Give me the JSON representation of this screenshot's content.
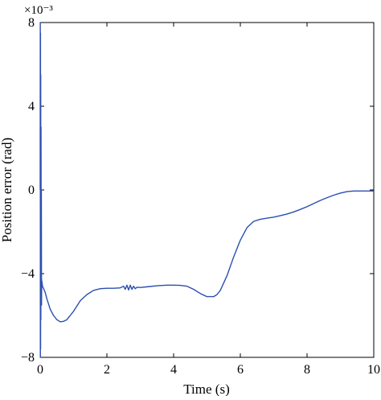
{
  "chart_data": {
    "type": "line",
    "title": "",
    "xlabel": "Time (s)",
    "ylabel": "Position error (rad)",
    "y_scale_label": "×10⁻³",
    "xlim": [
      0,
      10
    ],
    "ylim": [
      -8,
      8
    ],
    "xticks": [
      0,
      2,
      4,
      6,
      8,
      10
    ],
    "yticks": [
      -8,
      -4,
      0,
      4,
      8
    ],
    "xtick_labels": [
      "0",
      "2",
      "4",
      "6",
      "8",
      "10"
    ],
    "ytick_labels": [
      "−8",
      "−4",
      "0",
      "4",
      "8"
    ],
    "grid": false,
    "legend": "none",
    "series": [
      {
        "color": "#2b4fb0",
        "unit_scale": "1e-3",
        "x": [
          0,
          0.003,
          0.006,
          0.009,
          0.012,
          0.016,
          0.02,
          0.025,
          0.03,
          0.035,
          0.04,
          0.045,
          0.05,
          0.055,
          0.06,
          0.07,
          0.08,
          0.1,
          0.15,
          0.2,
          0.3,
          0.4,
          0.5,
          0.6,
          0.7,
          0.8,
          0.85,
          0.9,
          1.0,
          1.2,
          1.4,
          1.6,
          1.8,
          2.0,
          2.2,
          2.4,
          2.5,
          2.55,
          2.6,
          2.65,
          2.7,
          2.75,
          2.8,
          2.85,
          2.9,
          3.0,
          3.2,
          3.5,
          3.8,
          4.0,
          4.2,
          4.4,
          4.6,
          4.8,
          5.0,
          5.2,
          5.3,
          5.4,
          5.6,
          5.8,
          6.0,
          6.2,
          6.4,
          6.6,
          6.8,
          7.0,
          7.2,
          7.4,
          7.6,
          7.8,
          8.0,
          8.2,
          8.4,
          8.6,
          8.8,
          9.0,
          9.2,
          9.4,
          9.6,
          9.8,
          10.0
        ],
        "y": [
          0,
          8.0,
          -8.0,
          7.5,
          -7.6,
          5.5,
          -6.2,
          3.0,
          -4.0,
          0.0,
          -5.5,
          -4.3,
          -4.6,
          -4.4,
          -4.5,
          -4.6,
          -4.65,
          -4.7,
          -4.9,
          -5.2,
          -5.7,
          -6.0,
          -6.2,
          -6.3,
          -6.28,
          -6.2,
          -6.1,
          -6.0,
          -5.8,
          -5.3,
          -5.0,
          -4.8,
          -4.72,
          -4.7,
          -4.7,
          -4.68,
          -4.6,
          -4.75,
          -4.55,
          -4.78,
          -4.55,
          -4.75,
          -4.6,
          -4.72,
          -4.65,
          -4.66,
          -4.63,
          -4.58,
          -4.55,
          -4.55,
          -4.56,
          -4.6,
          -4.75,
          -4.95,
          -5.1,
          -5.1,
          -5.0,
          -4.8,
          -4.1,
          -3.2,
          -2.4,
          -1.8,
          -1.5,
          -1.4,
          -1.35,
          -1.3,
          -1.23,
          -1.15,
          -1.05,
          -0.93,
          -0.8,
          -0.65,
          -0.5,
          -0.37,
          -0.25,
          -0.15,
          -0.08,
          -0.05,
          -0.05,
          -0.05,
          -0.05
        ]
      }
    ]
  }
}
